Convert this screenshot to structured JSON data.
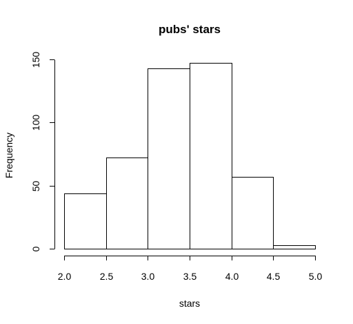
{
  "chart_data": {
    "type": "bar",
    "title": "pubs' stars",
    "xlabel": "stars",
    "ylabel": "Frequency",
    "bins": [
      {
        "start": 2.0,
        "end": 2.5,
        "value": 44
      },
      {
        "start": 2.5,
        "end": 3.0,
        "value": 72
      },
      {
        "start": 3.0,
        "end": 3.5,
        "value": 143
      },
      {
        "start": 3.5,
        "end": 4.0,
        "value": 147
      },
      {
        "start": 4.0,
        "end": 4.5,
        "value": 57
      },
      {
        "start": 4.5,
        "end": 5.0,
        "value": 3
      }
    ],
    "xlim": [
      2.0,
      5.0
    ],
    "ylim": [
      0,
      150
    ],
    "x_ticks": [
      "2.0",
      "2.5",
      "3.0",
      "3.5",
      "4.0",
      "4.5",
      "5.0"
    ],
    "y_ticks": [
      "0",
      "50",
      "100",
      "150"
    ],
    "grid": false,
    "legend": "none"
  }
}
